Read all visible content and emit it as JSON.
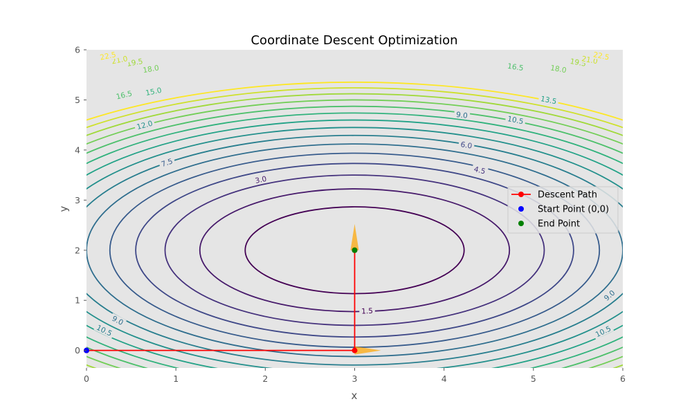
{
  "chart_data": {
    "type": "contour",
    "title": "Coordinate Descent Optimization",
    "xlabel": "x",
    "ylabel": "y",
    "xlim": [
      0,
      6
    ],
    "ylim": [
      -0.35,
      6
    ],
    "xticks": [
      0,
      1,
      2,
      3,
      4,
      5,
      6
    ],
    "yticks": [
      0,
      1,
      2,
      3,
      4,
      5,
      6
    ],
    "grid": false,
    "background": "#e5e5e5",
    "function": {
      "form": "(x - 3)^2 + 2*(y - 2)^2",
      "center": [
        3,
        2
      ]
    },
    "contour_levels": [
      1.5,
      3.0,
      4.5,
      6.0,
      7.5,
      9.0,
      10.5,
      12.0,
      13.5,
      15.0,
      16.5,
      18.0,
      19.5,
      21.0,
      22.5
    ],
    "contour_labels": [
      {
        "text": "1.5",
        "x": 3.14,
        "y": 0.79
      },
      {
        "text": "3.0",
        "x": 1.95,
        "y": 3.41
      },
      {
        "text": "4.5",
        "x": 4.4,
        "y": 3.6
      },
      {
        "text": "6.0",
        "x": 4.25,
        "y": 4.1
      },
      {
        "text": "7.5",
        "x": 0.9,
        "y": 3.75
      },
      {
        "text": "9.0",
        "x": 4.2,
        "y": 4.7
      },
      {
        "text": "10.5",
        "x": 4.8,
        "y": 4.6
      },
      {
        "text": "12.0",
        "x": 0.65,
        "y": 4.5
      },
      {
        "text": "13.5",
        "x": 5.17,
        "y": 5.0
      },
      {
        "text": "15.0",
        "x": 0.75,
        "y": 5.17
      },
      {
        "text": "16.5",
        "x": 0.42,
        "y": 5.1
      },
      {
        "text": "16.5",
        "x": 4.8,
        "y": 5.66
      },
      {
        "text": "18.0",
        "x": 0.72,
        "y": 5.62
      },
      {
        "text": "18.0",
        "x": 5.28,
        "y": 5.62
      },
      {
        "text": "19.5",
        "x": 0.54,
        "y": 5.75
      },
      {
        "text": "19.5",
        "x": 5.5,
        "y": 5.75
      },
      {
        "text": "21.0",
        "x": 0.37,
        "y": 5.8
      },
      {
        "text": "21.0",
        "x": 5.63,
        "y": 5.8
      },
      {
        "text": "22.5",
        "x": 0.24,
        "y": 5.88
      },
      {
        "text": "22.5",
        "x": 5.76,
        "y": 5.88
      },
      {
        "text": "9.0",
        "x": 0.35,
        "y": 0.6
      },
      {
        "text": "10.5",
        "x": 0.2,
        "y": 0.4
      },
      {
        "text": "9.0",
        "x": 5.85,
        "y": 1.1
      },
      {
        "text": "10.5",
        "x": 5.78,
        "y": 0.38
      }
    ],
    "series": [
      {
        "name": "Descent Path",
        "color": "#ff0000",
        "marker": "circle",
        "x": [
          0,
          3,
          3
        ],
        "y": [
          0,
          0,
          2
        ]
      },
      {
        "name": "Start Point (0,0)",
        "color": "#0000ff",
        "marker": "circle",
        "x": [
          0
        ],
        "y": [
          0
        ]
      },
      {
        "name": "End Point",
        "color": "#008000",
        "marker": "circle",
        "x": [
          3
        ],
        "y": [
          2
        ]
      }
    ],
    "arrows": [
      {
        "from": [
          0,
          0
        ],
        "to": [
          3,
          0
        ],
        "color": "#ffa500"
      },
      {
        "from": [
          3,
          0
        ],
        "to": [
          3,
          2
        ],
        "color": "#ffa500"
      }
    ],
    "legend_position": "right"
  }
}
